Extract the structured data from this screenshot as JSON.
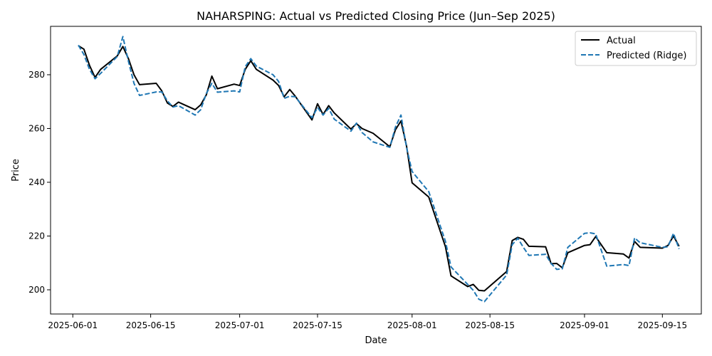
{
  "chart_data": {
    "type": "line",
    "title": "NAHARSPING: Actual vs Predicted Closing Price (Jun–Sep 2025)",
    "xlabel": "Date",
    "ylabel": "Price",
    "xlim": [
      "2025-05-28",
      "2025-09-22"
    ],
    "ylim": [
      191,
      298
    ],
    "x_ticks": [
      "2025-06-01",
      "2025-06-15",
      "2025-07-01",
      "2025-07-15",
      "2025-08-01",
      "2025-08-15",
      "2025-09-01",
      "2025-09-15"
    ],
    "y_ticks": [
      200,
      220,
      240,
      260,
      280
    ],
    "grid": false,
    "legend_position": "top-right",
    "series": [
      {
        "name": "Actual",
        "color": "#000000",
        "style": "solid",
        "points": [
          [
            "2025-06-02",
            290.8
          ],
          [
            "2025-06-03",
            289.5
          ],
          [
            "2025-06-04",
            283.5
          ],
          [
            "2025-06-05",
            279.0
          ],
          [
            "2025-06-06",
            282.0
          ],
          [
            "2025-06-09",
            287.0
          ],
          [
            "2025-06-10",
            290.5
          ],
          [
            "2025-06-11",
            286.0
          ],
          [
            "2025-06-12",
            280.0
          ],
          [
            "2025-06-13",
            276.3
          ],
          [
            "2025-06-16",
            276.8
          ],
          [
            "2025-06-17",
            274.0
          ],
          [
            "2025-06-18",
            269.5
          ],
          [
            "2025-06-19",
            268.2
          ],
          [
            "2025-06-20",
            269.8
          ],
          [
            "2025-06-23",
            267.0
          ],
          [
            "2025-06-24",
            268.8
          ],
          [
            "2025-06-25",
            272.5
          ],
          [
            "2025-06-26",
            279.5
          ],
          [
            "2025-06-27",
            274.8
          ],
          [
            "2025-06-30",
            276.5
          ],
          [
            "2025-07-01",
            276.0
          ],
          [
            "2025-07-02",
            282.0
          ],
          [
            "2025-07-03",
            285.2
          ],
          [
            "2025-07-04",
            282.0
          ],
          [
            "2025-07-07",
            278.0
          ],
          [
            "2025-07-08",
            276.0
          ],
          [
            "2025-07-09",
            271.8
          ],
          [
            "2025-07-10",
            274.5
          ],
          [
            "2025-07-11",
            272.0
          ],
          [
            "2025-07-14",
            263.2
          ],
          [
            "2025-07-15",
            269.2
          ],
          [
            "2025-07-16",
            265.2
          ],
          [
            "2025-07-17",
            268.5
          ],
          [
            "2025-07-18",
            265.8
          ],
          [
            "2025-07-21",
            259.8
          ],
          [
            "2025-07-22",
            261.8
          ],
          [
            "2025-07-23",
            260.0
          ],
          [
            "2025-07-25",
            258.2
          ],
          [
            "2025-07-28",
            253.2
          ],
          [
            "2025-07-29",
            259.5
          ],
          [
            "2025-07-30",
            262.8
          ],
          [
            "2025-07-31",
            253.5
          ],
          [
            "2025-08-01",
            239.8
          ],
          [
            "2025-08-04",
            234.5
          ],
          [
            "2025-08-07",
            216.0
          ],
          [
            "2025-08-08",
            205.2
          ],
          [
            "2025-08-11",
            201.2
          ],
          [
            "2025-08-12",
            202.0
          ],
          [
            "2025-08-13",
            199.8
          ],
          [
            "2025-08-14",
            199.6
          ],
          [
            "2025-08-18",
            206.8
          ],
          [
            "2025-08-19",
            218.3
          ],
          [
            "2025-08-20",
            219.5
          ],
          [
            "2025-08-21",
            218.8
          ],
          [
            "2025-08-22",
            216.2
          ],
          [
            "2025-08-25",
            216.0
          ],
          [
            "2025-08-26",
            209.7
          ],
          [
            "2025-08-27",
            209.8
          ],
          [
            "2025-08-28",
            208.2
          ],
          [
            "2025-08-29",
            213.8
          ],
          [
            "2025-09-01",
            216.5
          ],
          [
            "2025-09-02",
            216.8
          ],
          [
            "2025-09-03",
            219.8
          ],
          [
            "2025-09-05",
            213.8
          ],
          [
            "2025-09-08",
            213.3
          ],
          [
            "2025-09-09",
            211.8
          ],
          [
            "2025-09-10",
            218.0
          ],
          [
            "2025-09-11",
            215.8
          ],
          [
            "2025-09-15",
            215.5
          ],
          [
            "2025-09-16",
            216.5
          ],
          [
            "2025-09-17",
            220.0
          ],
          [
            "2025-09-18",
            216.2
          ]
        ]
      },
      {
        "name": "Predicted (Ridge)",
        "color": "#1f77b4",
        "style": "dashed",
        "points": [
          [
            "2025-06-02",
            291.0
          ],
          [
            "2025-06-03",
            287.5
          ],
          [
            "2025-06-04",
            282.0
          ],
          [
            "2025-06-05",
            278.5
          ],
          [
            "2025-06-06",
            280.5
          ],
          [
            "2025-06-09",
            286.8
          ],
          [
            "2025-06-10",
            294.2
          ],
          [
            "2025-06-11",
            285.0
          ],
          [
            "2025-06-12",
            276.8
          ],
          [
            "2025-06-13",
            272.3
          ],
          [
            "2025-06-16",
            273.6
          ],
          [
            "2025-06-17",
            273.6
          ],
          [
            "2025-06-18",
            270.3
          ],
          [
            "2025-06-19",
            268.0
          ],
          [
            "2025-06-20",
            268.5
          ],
          [
            "2025-06-23",
            265.0
          ],
          [
            "2025-06-24",
            267.0
          ],
          [
            "2025-06-25",
            273.0
          ],
          [
            "2025-06-26",
            276.8
          ],
          [
            "2025-06-27",
            273.5
          ],
          [
            "2025-06-30",
            274.0
          ],
          [
            "2025-07-01",
            273.6
          ],
          [
            "2025-07-02",
            283.0
          ],
          [
            "2025-07-03",
            286.0
          ],
          [
            "2025-07-04",
            283.2
          ],
          [
            "2025-07-07",
            280.0
          ],
          [
            "2025-07-08",
            277.5
          ],
          [
            "2025-07-09",
            271.2
          ],
          [
            "2025-07-10",
            272.0
          ],
          [
            "2025-07-11",
            271.8
          ],
          [
            "2025-07-14",
            264.0
          ],
          [
            "2025-07-15",
            267.8
          ],
          [
            "2025-07-16",
            265.0
          ],
          [
            "2025-07-17",
            267.5
          ],
          [
            "2025-07-18",
            263.5
          ],
          [
            "2025-07-21",
            259.0
          ],
          [
            "2025-07-22",
            262.0
          ],
          [
            "2025-07-23",
            258.5
          ],
          [
            "2025-07-25",
            255.0
          ],
          [
            "2025-07-28",
            253.0
          ],
          [
            "2025-07-29",
            260.5
          ],
          [
            "2025-07-30",
            265.0
          ],
          [
            "2025-07-31",
            253.0
          ],
          [
            "2025-08-01",
            244.0
          ],
          [
            "2025-08-04",
            236.5
          ],
          [
            "2025-08-07",
            218.0
          ],
          [
            "2025-08-08",
            208.5
          ],
          [
            "2025-08-11",
            202.0
          ],
          [
            "2025-08-12",
            199.8
          ],
          [
            "2025-08-13",
            196.5
          ],
          [
            "2025-08-14",
            195.6
          ],
          [
            "2025-08-18",
            205.5
          ],
          [
            "2025-08-19",
            216.8
          ],
          [
            "2025-08-20",
            219.2
          ],
          [
            "2025-08-21",
            215.8
          ],
          [
            "2025-08-22",
            212.8
          ],
          [
            "2025-08-25",
            213.2
          ],
          [
            "2025-08-26",
            209.8
          ],
          [
            "2025-08-27",
            207.6
          ],
          [
            "2025-08-28",
            207.8
          ],
          [
            "2025-08-29",
            215.8
          ],
          [
            "2025-09-01",
            221.0
          ],
          [
            "2025-09-02",
            221.2
          ],
          [
            "2025-09-03",
            220.8
          ],
          [
            "2025-09-05",
            208.8
          ],
          [
            "2025-09-08",
            209.4
          ],
          [
            "2025-09-09",
            209.0
          ],
          [
            "2025-09-10",
            219.3
          ],
          [
            "2025-09-11",
            217.5
          ],
          [
            "2025-09-15",
            215.8
          ],
          [
            "2025-09-16",
            216.0
          ],
          [
            "2025-09-17",
            221.0
          ],
          [
            "2025-09-18",
            215.2
          ]
        ]
      }
    ]
  }
}
